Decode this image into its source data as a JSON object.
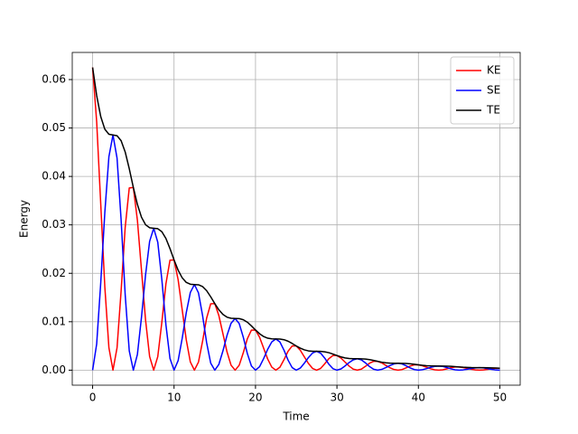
{
  "chart_data": {
    "type": "line",
    "x_label": "Time",
    "y_label": "Energy",
    "xlim": [
      -2.5,
      52.5
    ],
    "ylim": [
      -0.0031,
      0.0656
    ],
    "xticks": [
      0,
      10,
      20,
      30,
      40,
      50
    ],
    "yticks": [
      {
        "value": 0,
        "label": "0.00"
      },
      {
        "value": 0.01,
        "label": "0.01"
      },
      {
        "value": 0.02,
        "label": "0.02"
      },
      {
        "value": 0.03,
        "label": "0.03"
      },
      {
        "value": 0.04,
        "label": "0.04"
      },
      {
        "value": 0.05,
        "label": "0.05"
      },
      {
        "value": 0.06,
        "label": "0.06"
      }
    ],
    "grid": true,
    "legend": "upper right",
    "x": [
      0,
      0.5,
      1,
      1.5,
      2,
      2.5,
      3,
      3.5,
      4,
      4.5,
      5,
      5.5,
      6,
      6.5,
      7,
      7.5,
      8,
      8.5,
      9,
      9.5,
      10,
      10.5,
      11,
      11.5,
      12,
      12.5,
      13,
      13.5,
      14,
      14.5,
      15,
      15.5,
      16,
      16.5,
      17,
      17.5,
      18,
      18.5,
      19,
      19.5,
      20,
      20.5,
      21,
      21.5,
      22,
      22.5,
      23,
      23.5,
      24,
      24.5,
      25,
      25.5,
      26,
      26.5,
      27,
      27.5,
      28,
      28.5,
      29,
      29.5,
      30,
      30.5,
      31,
      31.5,
      32,
      32.5,
      33,
      33.5,
      34,
      34.5,
      35,
      35.5,
      36,
      36.5,
      37,
      37.5,
      38,
      38.5,
      39,
      39.5,
      40,
      40.5,
      41,
      41.5,
      42,
      42.5,
      43,
      43.5,
      44,
      44.5,
      45,
      45.5,
      46,
      46.5,
      47,
      47.5,
      48,
      48.5,
      49,
      49.5,
      50
    ],
    "series": [
      {
        "name": "KE",
        "color": "#ff0000",
        "values": [
          0.0625,
          0.05127,
          0.03426,
          0.01719,
          0.00465,
          0,
          0.00462,
          0.01637,
          0.02949,
          0.03762,
          0.03772,
          0.03094,
          0.02068,
          0.01038,
          0.00281,
          0,
          0.00279,
          0.00988,
          0.0178,
          0.0227,
          0.02276,
          0.01867,
          0.01247,
          0.00626,
          0.00169,
          0,
          0.00168,
          0.00596,
          0.01074,
          0.0137,
          0.01374,
          0.01127,
          0.00753,
          0.00378,
          0.00102,
          0,
          0.00102,
          0.0036,
          0.00648,
          0.00827,
          0.00829,
          0.0068,
          0.00454,
          0.00228,
          0.00062,
          0,
          0.00061,
          0.00217,
          0.00391,
          0.00499,
          0.005,
          0.00411,
          0.00274,
          0.00138,
          0.00037,
          0,
          0.00037,
          0.00131,
          0.00236,
          0.00301,
          0.00302,
          0.00248,
          0.00166,
          0.00083,
          0.00022,
          0,
          0.00022,
          0.00079,
          0.00143,
          0.00182,
          0.00182,
          0.00149,
          0.001,
          0.0005,
          0.00014,
          0,
          0.00013,
          0.00048,
          0.00086,
          0.00109,
          0.0011,
          0.0009,
          0.0006,
          0.0003,
          8e-05,
          0,
          8e-05,
          0.00029,
          0.00052,
          0.00066,
          0.00066,
          0.00054,
          0.00037,
          0.00018,
          5e-05,
          0,
          5e-05,
          0.00017,
          0.00031,
          0.0004,
          0.0004
        ]
      },
      {
        "name": "SE",
        "color": "#0000ff",
        "values": [
          0,
          0.00541,
          0.01808,
          0.03257,
          0.04406,
          0.04856,
          0.04378,
          0.03101,
          0.01556,
          0.00397,
          0,
          0.00327,
          0.01091,
          0.01965,
          0.02659,
          0.0293,
          0.02642,
          0.01871,
          0.00939,
          0.0024,
          0,
          0.00197,
          0.00659,
          0.01186,
          0.01605,
          0.01768,
          0.01595,
          0.0113,
          0.00567,
          0.00145,
          0,
          0.00119,
          0.00397,
          0.00716,
          0.00969,
          0.01067,
          0.00962,
          0.00681,
          0.00342,
          0.00087,
          0,
          0.00072,
          0.0024,
          0.00432,
          0.00584,
          0.00644,
          0.00581,
          0.00412,
          0.00207,
          0.00053,
          0,
          0.00043,
          0.00145,
          0.0026,
          0.00353,
          0.00389,
          0.0035,
          0.00248,
          0.00125,
          0.00032,
          0,
          0.00026,
          0.00087,
          0.00157,
          0.00213,
          0.00235,
          0.00212,
          0.0015,
          0.00075,
          0.00019,
          0,
          0.00016,
          0.00053,
          0.00095,
          0.00128,
          0.00142,
          0.00128,
          0.0009,
          0.00045,
          0.00012,
          0,
          0.0001,
          0.00032,
          0.00058,
          0.00078,
          0.00085,
          0.00077,
          0.00054,
          0.00027,
          7e-05,
          0,
          6e-05,
          0.00019,
          0.00035,
          0.00047,
          0.00052,
          0.00046,
          0.00033,
          0.00017,
          4e-05,
          0
        ]
      },
      {
        "name": "TE",
        "color": "#000000",
        "values": [
          0.0625,
          0.05668,
          0.05234,
          0.04976,
          0.04871,
          0.04856,
          0.0484,
          0.04738,
          0.04505,
          0.04159,
          0.03772,
          0.03421,
          0.03159,
          0.03003,
          0.0294,
          0.0293,
          0.02921,
          0.02859,
          0.02719,
          0.0251,
          0.02276,
          0.02064,
          0.01906,
          0.01812,
          0.01774,
          0.01768,
          0.01763,
          0.01726,
          0.01641,
          0.01515,
          0.01374,
          0.01246,
          0.0115,
          0.01094,
          0.01071,
          0.01067,
          0.01064,
          0.01041,
          0.0099,
          0.00914,
          0.00829,
          0.00752,
          0.00694,
          0.0066,
          0.00646,
          0.00644,
          0.00642,
          0.00629,
          0.00598,
          0.00552,
          0.005,
          0.00454,
          0.00419,
          0.00398,
          0.0039,
          0.00389,
          0.00387,
          0.00379,
          0.00361,
          0.00333,
          0.00302,
          0.00274,
          0.00253,
          0.0024,
          0.00235,
          0.00235,
          0.00234,
          0.00229,
          0.00218,
          0.00201,
          0.00182,
          0.00165,
          0.00153,
          0.00145,
          0.00142,
          0.00142,
          0.00141,
          0.00138,
          0.00131,
          0.00121,
          0.0011,
          0.001,
          0.00092,
          0.00088,
          0.00086,
          0.00085,
          0.00085,
          0.00083,
          0.00079,
          0.00073,
          0.00066,
          0.0006,
          0.00056,
          0.00053,
          0.00052,
          0.00052,
          0.00051,
          0.0005,
          0.00048,
          0.00044,
          0.0004
        ]
      }
    ]
  }
}
